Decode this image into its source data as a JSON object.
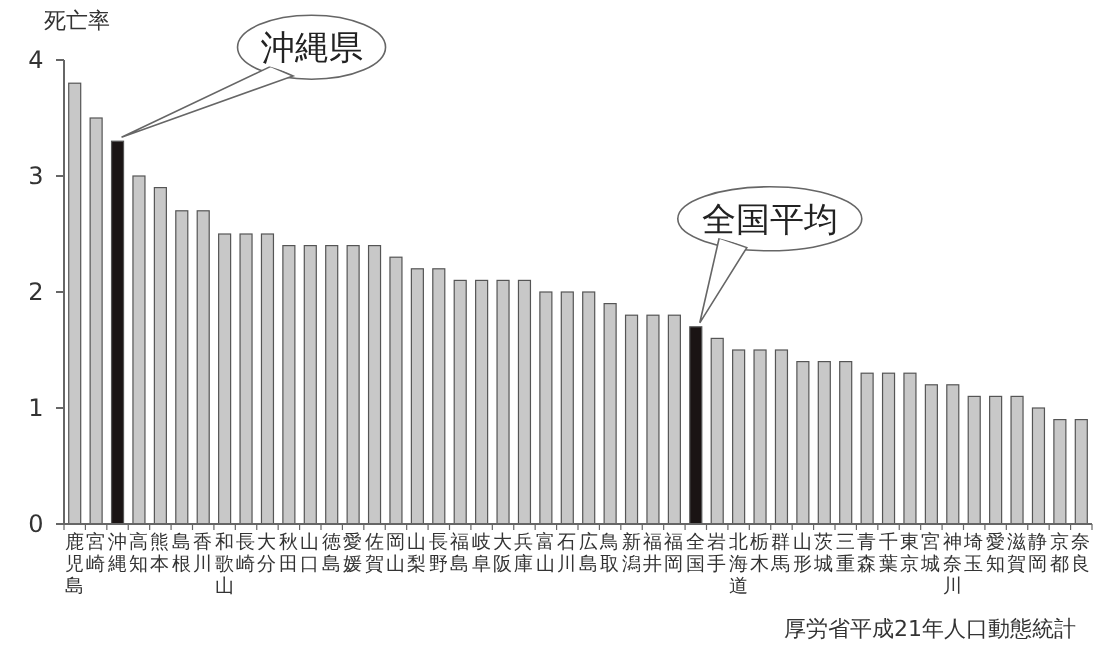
{
  "chart_data": {
    "type": "bar",
    "ylabel": "死亡率",
    "categories": [
      "鹿児島",
      "宮崎",
      "沖縄",
      "高知",
      "熊本",
      "島根",
      "香川",
      "和歌山",
      "長崎",
      "大分",
      "秋田",
      "山口",
      "徳島",
      "愛媛",
      "佐賀",
      "岡山",
      "山梨",
      "長野",
      "福島",
      "岐阜",
      "大阪",
      "兵庫",
      "富山",
      "石川",
      "広島",
      "鳥取",
      "新潟",
      "福井",
      "福岡",
      "全国",
      "岩手",
      "北海道",
      "栃木",
      "群馬",
      "山形",
      "茨城",
      "三重",
      "青森",
      "千葉",
      "東京",
      "宮城",
      "神奈川",
      "埼玉",
      "愛知",
      "滋賀",
      "静岡",
      "京都",
      "奈良"
    ],
    "values": [
      3.8,
      3.5,
      3.3,
      3.0,
      2.9,
      2.7,
      2.7,
      2.5,
      2.5,
      2.5,
      2.4,
      2.4,
      2.4,
      2.4,
      2.4,
      2.3,
      2.2,
      2.2,
      2.1,
      2.1,
      2.1,
      2.1,
      2.0,
      2.0,
      2.0,
      1.9,
      1.8,
      1.8,
      1.8,
      1.7,
      1.6,
      1.5,
      1.5,
      1.5,
      1.4,
      1.4,
      1.4,
      1.3,
      1.3,
      1.3,
      1.2,
      1.2,
      1.1,
      1.1,
      1.1,
      1.0,
      0.9,
      0.9
    ],
    "colors": [
      "#c8c8c8",
      "#c8c8c8",
      "#1a1414",
      "#c8c8c8",
      "#c8c8c8",
      "#c8c8c8",
      "#c8c8c8",
      "#c8c8c8",
      "#c8c8c8",
      "#c8c8c8",
      "#c8c8c8",
      "#c8c8c8",
      "#c8c8c8",
      "#c8c8c8",
      "#c8c8c8",
      "#c8c8c8",
      "#c8c8c8",
      "#c8c8c8",
      "#c8c8c8",
      "#c8c8c8",
      "#c8c8c8",
      "#c8c8c8",
      "#c8c8c8",
      "#c8c8c8",
      "#c8c8c8",
      "#c8c8c8",
      "#c8c8c8",
      "#c8c8c8",
      "#c8c8c8",
      "#1a1414",
      "#c8c8c8",
      "#c8c8c8",
      "#c8c8c8",
      "#c8c8c8",
      "#c8c8c8",
      "#c8c8c8",
      "#c8c8c8",
      "#c8c8c8",
      "#c8c8c8",
      "#c8c8c8",
      "#c8c8c8",
      "#c8c8c8",
      "#c8c8c8",
      "#c8c8c8",
      "#c8c8c8",
      "#c8c8c8",
      "#c8c8c8",
      "#c8c8c8"
    ],
    "ylim": [
      0,
      4
    ],
    "yticks": [
      0,
      1,
      2,
      3,
      4
    ],
    "grid": false,
    "annotations": [
      {
        "text": "沖縄県",
        "x": "沖縄",
        "y": 3.3
      },
      {
        "text": "全国平均",
        "x": "全国",
        "y": 1.7
      },
      "厚労省平成21年人口動態統計"
    ]
  }
}
